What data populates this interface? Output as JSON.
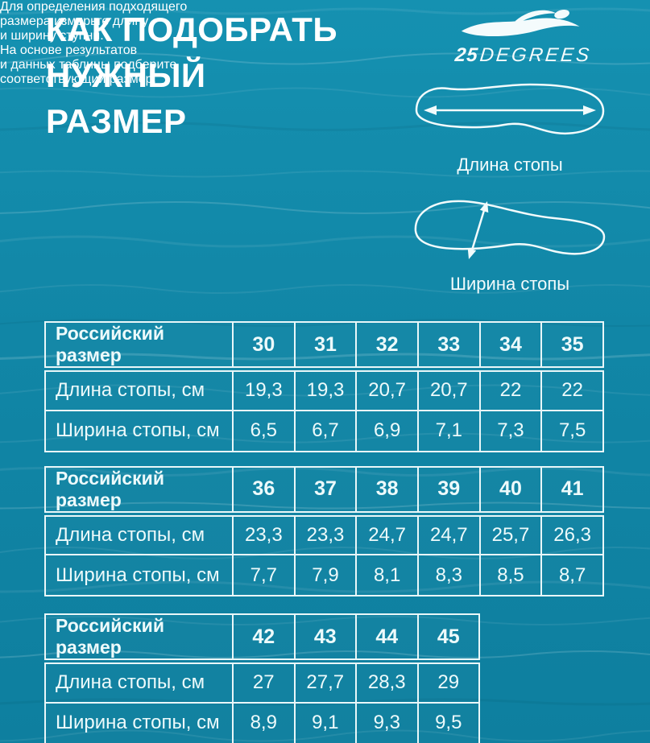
{
  "header": {
    "title_lines": [
      "КАК ПОДОБРАТЬ",
      "НУЖНЫЙ",
      "РАЗМЕР"
    ],
    "brand": {
      "number": "25",
      "name": "DEGREES"
    }
  },
  "intro_lines": [
    "Для определения подходящего",
    "размера измерьте длину",
    "и ширину ступни.",
    "На основе результатов",
    "и данных таблицы подберите",
    "соответствующий размер."
  ],
  "diagrams": {
    "length_label": "Длина стопы",
    "width_label": "Ширина стопы"
  },
  "chart_data": [
    {
      "type": "table",
      "header_label": "Российский размер",
      "sizes": [
        "30",
        "31",
        "32",
        "33",
        "34",
        "35"
      ],
      "rows": [
        {
          "label": "Длина стопы, см",
          "values": [
            "19,3",
            "19,3",
            "20,7",
            "20,7",
            "22",
            "22"
          ]
        },
        {
          "label": "Ширина стопы, см",
          "values": [
            "6,5",
            "6,7",
            "6,9",
            "7,1",
            "7,3",
            "7,5"
          ]
        }
      ]
    },
    {
      "type": "table",
      "header_label": "Российский размер",
      "sizes": [
        "36",
        "37",
        "38",
        "39",
        "40",
        "41"
      ],
      "rows": [
        {
          "label": "Длина стопы, см",
          "values": [
            "23,3",
            "23,3",
            "24,7",
            "24,7",
            "25,7",
            "26,3"
          ]
        },
        {
          "label": "Ширина стопы, см",
          "values": [
            "7,7",
            "7,9",
            "8,1",
            "8,3",
            "8,5",
            "8,7"
          ]
        }
      ]
    },
    {
      "type": "table",
      "header_label": "Российский размер",
      "sizes": [
        "42",
        "43",
        "44",
        "45"
      ],
      "rows": [
        {
          "label": "Длина стопы, см",
          "values": [
            "27",
            "27,7",
            "28,3",
            "29"
          ]
        },
        {
          "label": "Ширина стопы, см",
          "values": [
            "8,9",
            "9,1",
            "9,3",
            "9,5"
          ]
        }
      ]
    }
  ],
  "colors": {
    "background": "#1187A7",
    "text": "#FFFFFF",
    "table_border": "#E9F7F9"
  }
}
